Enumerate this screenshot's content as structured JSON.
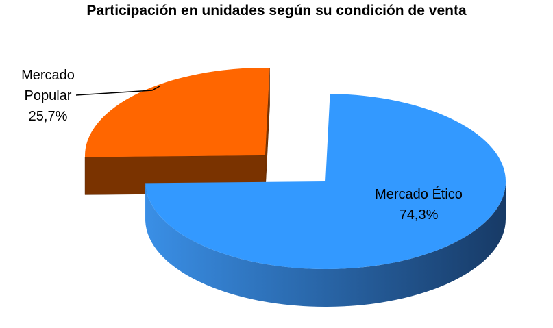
{
  "chart_data": {
    "type": "pie",
    "style": "3d-exploded",
    "title": "Participación en unidades según su condición de venta",
    "slices": [
      {
        "label_lines": [
          "Mercado Ético"
        ],
        "value_label": "74,3%",
        "value": 74.3,
        "color_top": "#3399FF",
        "color_side_light": "#3A8FE6",
        "color_side_dark": "#173A66"
      },
      {
        "label_lines": [
          "Mercado",
          "Popular"
        ],
        "value_label": "25,7%",
        "value": 25.7,
        "color_top": "#FF6600",
        "color_side_light": "#7A3300",
        "color_side_dark": "#5C2600"
      }
    ],
    "legend": "none"
  }
}
